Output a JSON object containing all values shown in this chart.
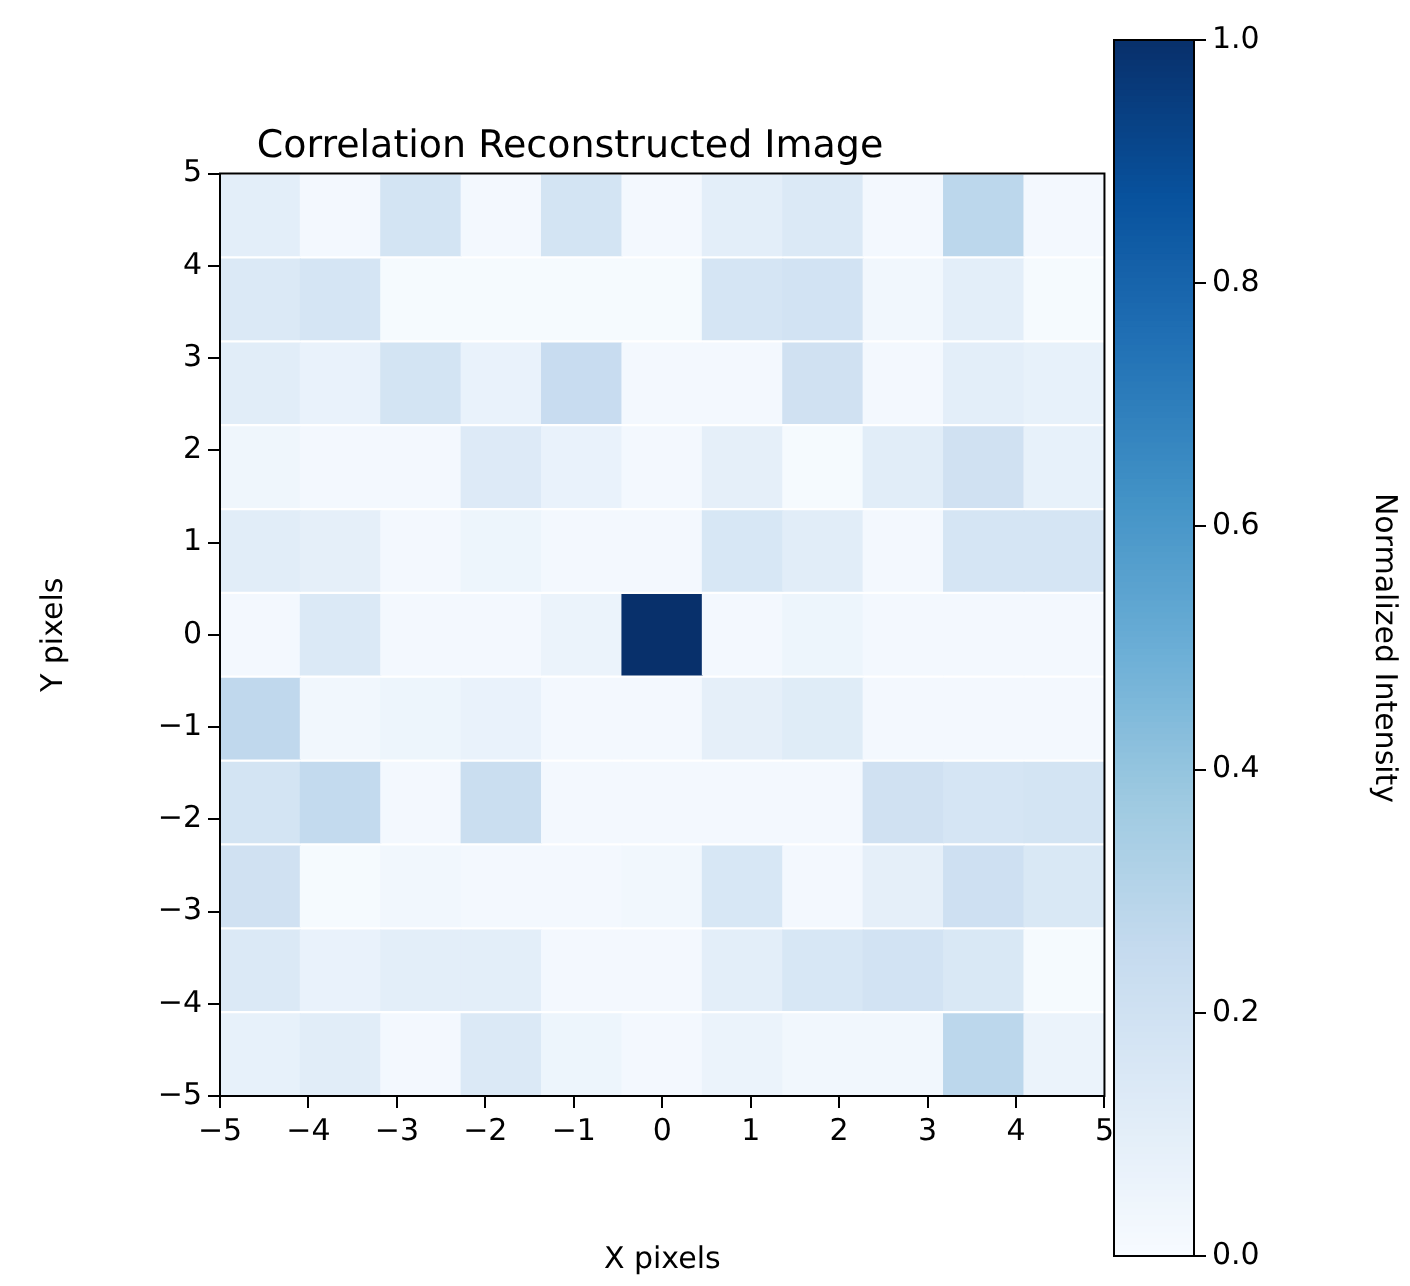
{
  "chart_data": {
    "type": "heatmap",
    "title": "Correlation Reconstructed Image",
    "xlabel": "X pixels",
    "ylabel": "Y pixels",
    "clabel": "Normalized Intensity",
    "cells": [
      [
        0.1,
        0.02,
        0.18,
        0.02,
        0.18,
        0.02,
        0.1,
        0.14,
        0.02,
        0.28,
        0.02
      ],
      [
        0.14,
        0.17,
        0.01,
        0.01,
        0.01,
        0.01,
        0.17,
        0.19,
        0.03,
        0.1,
        0.01
      ],
      [
        0.11,
        0.07,
        0.18,
        0.07,
        0.24,
        0.02,
        0.02,
        0.2,
        0.02,
        0.1,
        0.08
      ],
      [
        0.04,
        0.02,
        0.02,
        0.13,
        0.07,
        0.02,
        0.09,
        0.01,
        0.11,
        0.2,
        0.08
      ],
      [
        0.11,
        0.09,
        0.02,
        0.05,
        0.02,
        0.02,
        0.16,
        0.11,
        0.02,
        0.17,
        0.17
      ],
      [
        0.02,
        0.14,
        0.02,
        0.02,
        0.06,
        1.0,
        0.02,
        0.05,
        0.02,
        0.02,
        0.02
      ],
      [
        0.27,
        0.03,
        0.05,
        0.07,
        0.02,
        0.02,
        0.09,
        0.12,
        0.02,
        0.02,
        0.02
      ],
      [
        0.18,
        0.26,
        0.02,
        0.23,
        0.02,
        0.02,
        0.02,
        0.02,
        0.2,
        0.17,
        0.18
      ],
      [
        0.2,
        0.01,
        0.03,
        0.02,
        0.02,
        0.03,
        0.16,
        0.02,
        0.09,
        0.21,
        0.15
      ],
      [
        0.14,
        0.07,
        0.1,
        0.1,
        0.02,
        0.02,
        0.1,
        0.16,
        0.19,
        0.15,
        0.01
      ],
      [
        0.08,
        0.11,
        0.02,
        0.14,
        0.05,
        0.02,
        0.06,
        0.03,
        0.03,
        0.28,
        0.06
      ]
    ],
    "xlim": [
      -5,
      5
    ],
    "ylim": [
      -5,
      5
    ],
    "xticks": [
      {
        "value": -5,
        "label": "−5"
      },
      {
        "value": -4,
        "label": "−4"
      },
      {
        "value": -3,
        "label": "−3"
      },
      {
        "value": -2,
        "label": "−2"
      },
      {
        "value": -1,
        "label": "−1"
      },
      0,
      1,
      2,
      3,
      4,
      5
    ],
    "yticks": [
      {
        "value": -5,
        "label": "−5"
      },
      {
        "value": -4,
        "label": "−4"
      },
      {
        "value": -3,
        "label": "−3"
      },
      {
        "value": -2,
        "label": "−2"
      },
      {
        "value": -1,
        "label": "−1"
      },
      0,
      1,
      2,
      3,
      4,
      5
    ],
    "clim": [
      0,
      1
    ],
    "cticks": [
      {
        "value": 0,
        "label": "0.0"
      },
      {
        "value": 0.2,
        "label": "0.2"
      },
      {
        "value": 0.4,
        "label": "0.4"
      },
      {
        "value": 0.6,
        "label": "0.6"
      },
      {
        "value": 0.8,
        "label": "0.8"
      },
      {
        "value": 1,
        "label": "1.0"
      }
    ]
  }
}
